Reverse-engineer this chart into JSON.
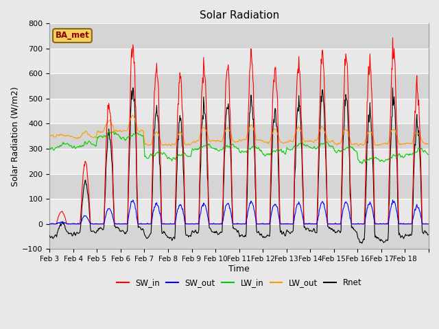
{
  "title": "Solar Radiation",
  "xlabel": "Time",
  "ylabel": "Solar Radiation (W/m2)",
  "ylim": [
    -100,
    800
  ],
  "yticks": [
    -100,
    0,
    100,
    200,
    300,
    400,
    500,
    600,
    700,
    800
  ],
  "xtick_labels": [
    "Feb 3",
    "Feb 4",
    "Feb 5",
    "Feb 6",
    "Feb 7",
    "Feb 8",
    "Feb 9",
    "Feb 10",
    "Feb 11",
    "Feb 12",
    "Feb 13",
    "Feb 14",
    "Feb 15",
    "Feb 16",
    "Feb 17",
    "Feb 18"
  ],
  "station_label": "BA_met",
  "colors": {
    "SW_in": "#ff0000",
    "SW_out": "#0000ff",
    "LW_in": "#00cc00",
    "LW_out": "#ff9900",
    "Rnet": "#000000"
  },
  "bg_color": "#e8e8e8",
  "n_days": 16,
  "dt": 0.02
}
